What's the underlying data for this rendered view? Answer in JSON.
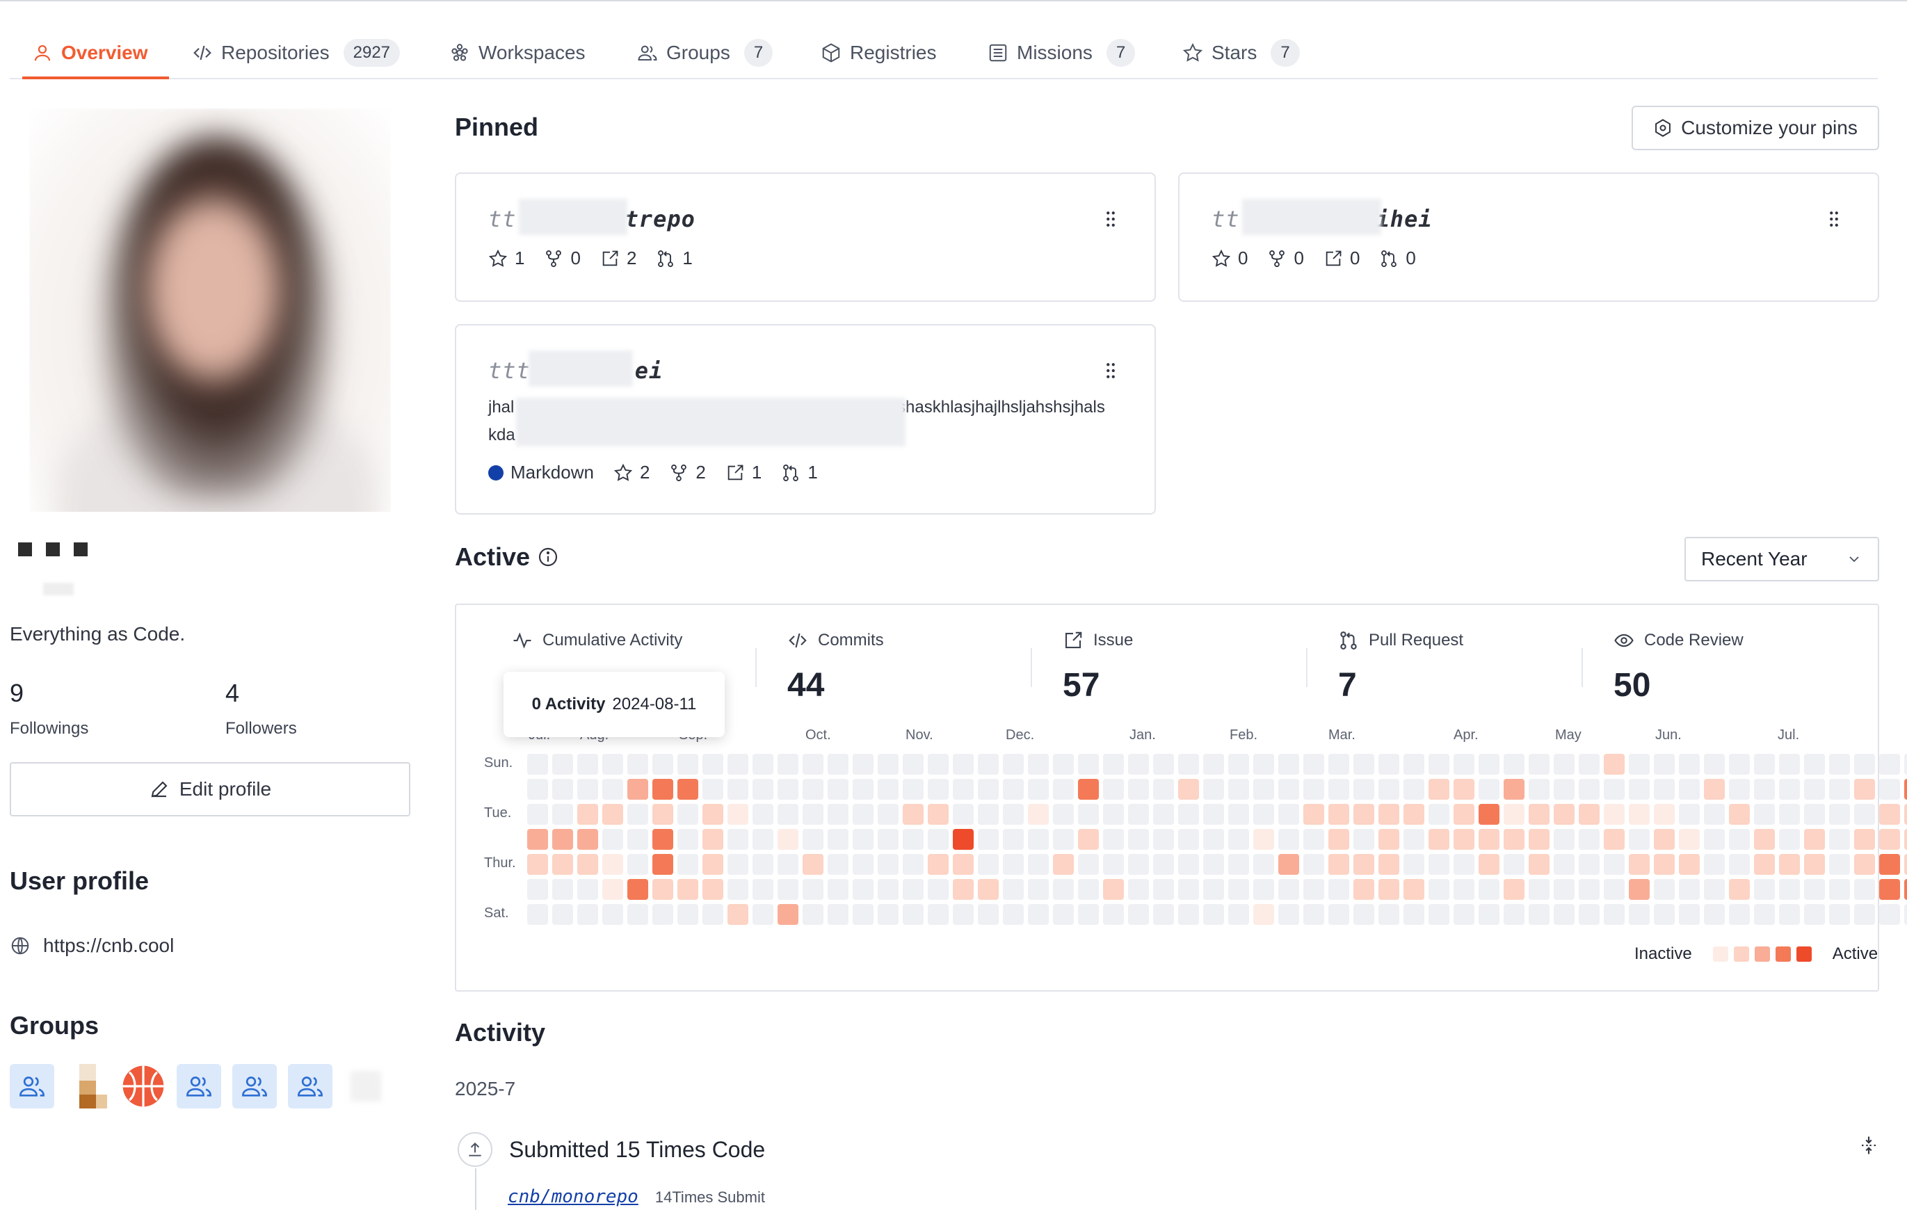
{
  "tabs": [
    {
      "label": "Overview",
      "count": null,
      "icon": "user-icon",
      "active": true
    },
    {
      "label": "Repositories",
      "count": "2927",
      "icon": "code-icon"
    },
    {
      "label": "Workspaces",
      "count": null,
      "icon": "workspace-icon"
    },
    {
      "label": "Groups",
      "count": "7",
      "icon": "groups-icon"
    },
    {
      "label": "Registries",
      "count": null,
      "icon": "package-icon"
    },
    {
      "label": "Missions",
      "count": "7",
      "icon": "missions-icon"
    },
    {
      "label": "Stars",
      "count": "7",
      "icon": "star-icon"
    }
  ],
  "profile": {
    "bio": "Everything as Code.",
    "followings": {
      "count": "9",
      "label": "Followings"
    },
    "followers": {
      "count": "4",
      "label": "Followers"
    },
    "edit_label": "Edit profile",
    "user_profile_heading": "User profile",
    "website": "https://cnb.cool",
    "groups_heading": "Groups"
  },
  "pinned": {
    "heading": "Pinned",
    "customize_label": "Customize your pins",
    "cards": [
      {
        "title_prefix": "tt",
        "title_suffix": "trepo",
        "stars": "1",
        "forks": "0",
        "issues": "2",
        "prs": "1"
      },
      {
        "title_prefix": "tt",
        "title_suffix": "ihei",
        "stars": "0",
        "forks": "0",
        "issues": "0",
        "prs": "0"
      },
      {
        "title_prefix": "ttt",
        "title_suffix": "ei",
        "desc_line1_start": "jhal",
        "desc_line1_end": "ıshaskhlasjhajlhsljahshsjhals",
        "desc_line2": "kda",
        "language": "Markdown",
        "stars": "2",
        "forks": "2",
        "issues": "1",
        "prs": "1"
      }
    ]
  },
  "active": {
    "heading": "Active",
    "range_select": "Recent Year",
    "metrics": [
      {
        "label": "Cumulative Activity",
        "value": "",
        "icon": "pulse-icon"
      },
      {
        "label": "Commits",
        "value": "44",
        "icon": "code-icon"
      },
      {
        "label": "Issue",
        "value": "57",
        "icon": "issue-icon"
      },
      {
        "label": "Pull Request",
        "value": "7",
        "icon": "pull-request-icon"
      },
      {
        "label": "Code Review",
        "value": "50",
        "icon": "eye-icon"
      }
    ],
    "tooltip": {
      "count": "0 Activity",
      "date": "2024-08-11"
    },
    "months": [
      "Jul.",
      "Aug.",
      "Sep.",
      "Oct.",
      "Nov.",
      "Dec.",
      "Jan.",
      "Feb.",
      "Mar.",
      "Apr.",
      "May",
      "Jun.",
      "Jul."
    ],
    "days": [
      "Sun.",
      "Tue.",
      "Thur.",
      "Sat."
    ],
    "legend": {
      "inactive": "Inactive",
      "active": "Active"
    },
    "colors": [
      "#eef0f4",
      "#fdece6",
      "#fcd3c4",
      "#f9ad96",
      "#f47a57",
      "#ee4b2b"
    ],
    "heatmap_levels": [
      "00000000000000000000000000000000000000000002000000000000",
      "00003440000000000000004000200000000022030000000200000204",
      "00220202100000022000100000000002222202412221110020000022",
      "33300402001000000500002000000100202022222002021002020222",
      "22210402000200002200020000000030222000202000222002220242",
      "00014222000000000220000200000000022200020000300020000044",
      "00000000203000000000000000000100000000000000000000000000"
    ]
  },
  "activity": {
    "heading": "Activity",
    "month": "2025-7",
    "item_title": "Submitted 15 Times Code",
    "repo": "cnb/monorepo",
    "repo_count": "14Times Submit"
  }
}
